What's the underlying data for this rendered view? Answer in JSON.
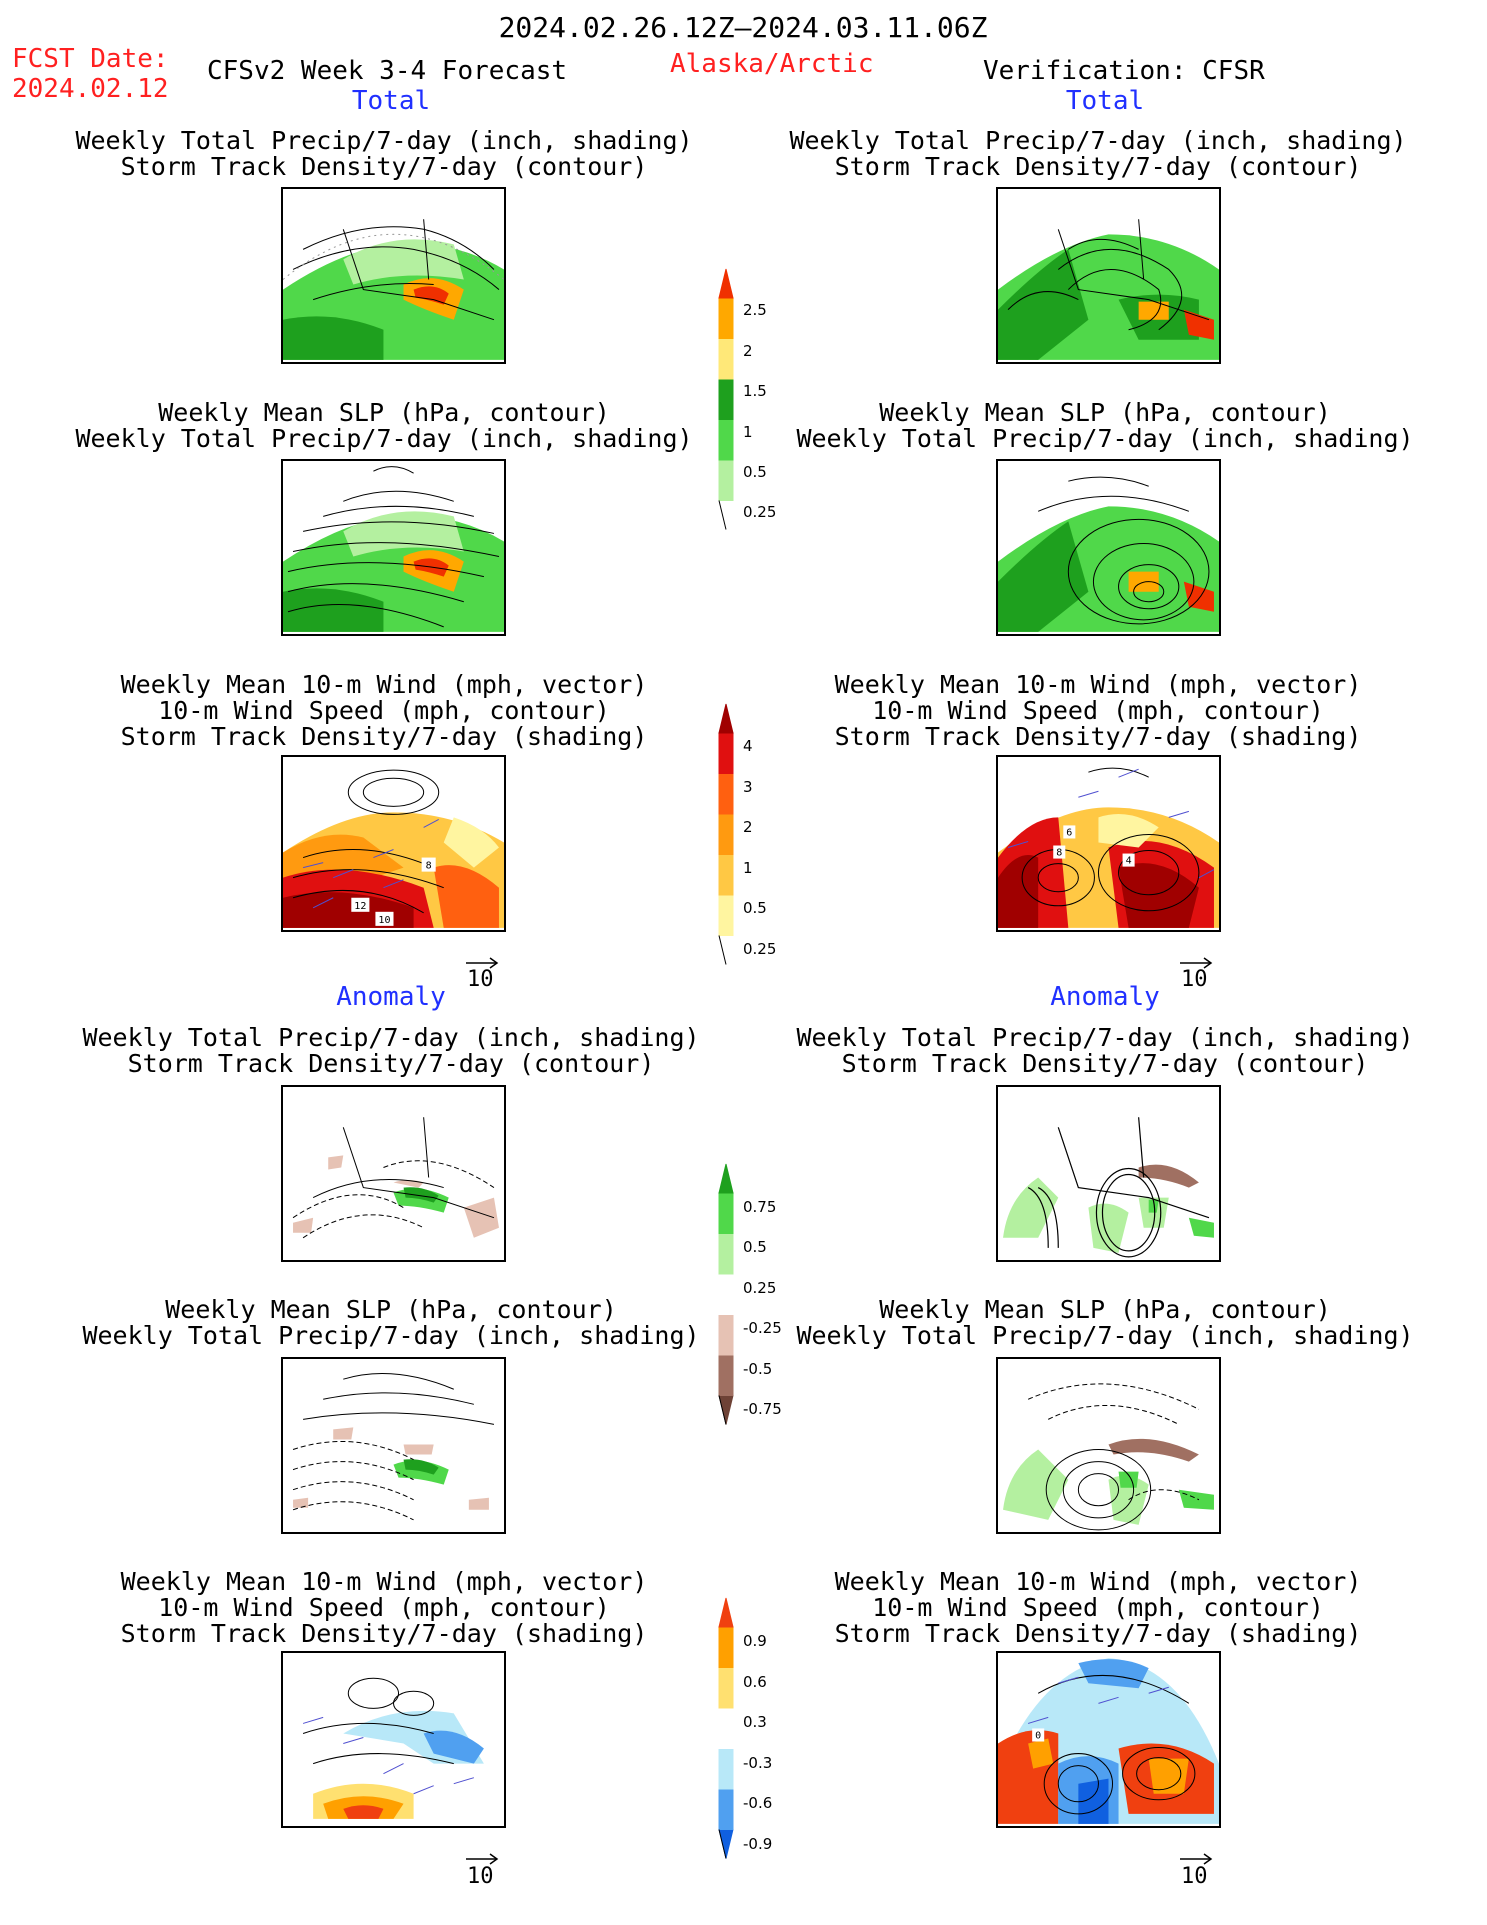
{
  "header": {
    "date_range": "2024.02.26.12Z–2024.03.11.06Z",
    "fcst_label": "FCST Date:",
    "fcst_date": "2024.02.12",
    "model": "CFSv2 Week 3-4 Forecast",
    "region": "Alaska/Arctic",
    "verification": "Verification: CFSR"
  },
  "sections": {
    "total": "Total",
    "anomaly": "Anomaly"
  },
  "titles": {
    "precip_storm": [
      "Weekly Total Precip/7-day (inch, shading)",
      "Storm Track Density/7-day (contour)"
    ],
    "slp_precip": [
      "Weekly Mean SLP (hPa, contour)",
      "Weekly Total Precip/7-day (inch, shading)"
    ],
    "wind": [
      "Weekly Mean 10-m Wind (mph, vector)",
      "10-m Wind Speed (mph, contour)",
      "Storm Track Density/7-day (shading)"
    ]
  },
  "vector_ref": "10",
  "map_labels": {
    "fcst_wind_total": [
      "12",
      "10",
      "8"
    ],
    "cfsr_wind_total": [
      "6",
      "8",
      "4"
    ],
    "cfsr_wind_anom": [
      "0"
    ]
  },
  "colorbars": {
    "precip_total": {
      "labels": [
        "2.5",
        "2",
        "1.5",
        "1",
        "0.5",
        "0.25"
      ],
      "colors": [
        "#ffffff",
        "#b4f0a0",
        "#50d84a",
        "#1ea01e",
        "#ffe878",
        "#ffa800",
        "#f03000"
      ]
    },
    "storm_total": {
      "labels": [
        "4",
        "3",
        "2",
        "1",
        "0.5",
        "0.25"
      ],
      "colors": [
        "#ffffff",
        "#fff5a0",
        "#ffc844",
        "#ff9a10",
        "#ff6010",
        "#e01010",
        "#a00000"
      ]
    },
    "precip_anom": {
      "labels": [
        "0.75",
        "0.5",
        "0.25",
        "-0.25",
        "-0.5",
        "-0.75"
      ],
      "colors": [
        "#6e4236",
        "#a07062",
        "#e6c2b4",
        "#ffffff",
        "#b4f0a0",
        "#50d84a",
        "#1ea01e"
      ]
    },
    "storm_anom": {
      "labels": [
        "0.9",
        "0.6",
        "0.3",
        "-0.3",
        "-0.6",
        "-0.9"
      ],
      "colors": [
        "#1060e0",
        "#50a0f0",
        "#b8e8f8",
        "#ffffff",
        "#ffe070",
        "#ffa000",
        "#f04010"
      ]
    }
  }
}
